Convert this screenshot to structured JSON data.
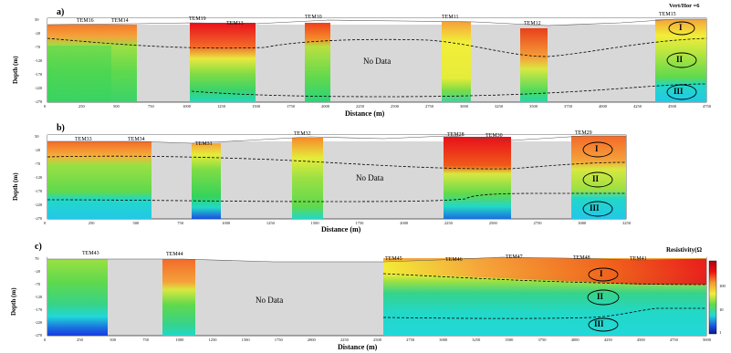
{
  "figure": {
    "vert_hor_label": "Vert/Hor =6",
    "resistivity_label": "Resistivity(Ω",
    "colorbar_ticks": [
      "100",
      "10",
      "1"
    ],
    "panels": [
      {
        "label": "a)",
        "stations": [
          "TEM16",
          "TEM14",
          "TEM19",
          "TEM13",
          "TEM10",
          "TEM11",
          "TEM12",
          "TEM15"
        ],
        "no_data": "No Data",
        "ylabel": "Depth (m)",
        "xlabel": "Distance (m)",
        "yticks": [
          "50",
          "-20",
          "-70",
          "-120",
          "-170",
          "-220",
          "-270"
        ],
        "xticks": [
          "0",
          "250",
          "500",
          "750",
          "1000",
          "1250",
          "1500",
          "1750",
          "2000",
          "2250",
          "2500",
          "2750",
          "3000",
          "3250",
          "3500",
          "3750",
          "4000",
          "4250",
          "4500",
          "4750"
        ],
        "units": [
          "I",
          "II",
          "III"
        ]
      },
      {
        "label": "b)",
        "stations": [
          "TEM33",
          "TEM34",
          "TEM31",
          "TEM32",
          "TEM28",
          "TEM30",
          "TEM29"
        ],
        "no_data": "No Data",
        "ylabel": "Depth (m)",
        "xlabel": "Distance (m)",
        "yticks": [
          "50",
          "-20",
          "-70",
          "-120",
          "-170",
          "-220",
          "-270"
        ],
        "xticks": [
          "0",
          "250",
          "500",
          "750",
          "1000",
          "1250",
          "1500",
          "1750",
          "2000",
          "2250",
          "2500",
          "2750",
          "3000",
          "3250"
        ],
        "units": [
          "I",
          "II",
          "III"
        ]
      },
      {
        "label": "c)",
        "stations": [
          "TEM43",
          "TEM44",
          "TEM45",
          "TEM46",
          "TEM47",
          "TEM48",
          "TEM41"
        ],
        "no_data": "No Data",
        "ylabel": "Depth (m)",
        "xlabel": "Distance (m)",
        "yticks": [
          "70",
          "-20",
          "-70",
          "-120",
          "-170",
          "-220",
          "-270"
        ],
        "xticks": [
          "0",
          "250",
          "500",
          "750",
          "1000",
          "1250",
          "1500",
          "1750",
          "2000",
          "2250",
          "2500",
          "2750",
          "3000",
          "3250",
          "3500",
          "3750",
          "4000",
          "4250",
          "4500",
          "4750",
          "5000"
        ],
        "units": [
          "I",
          "II",
          "III"
        ]
      }
    ]
  },
  "colors": {
    "red": "#e8101a",
    "orange": "#f5a23a",
    "yellow": "#f2ee38",
    "lime": "#9be043",
    "green": "#36d35a",
    "cyan": "#22d8d8",
    "blue": "#1a4de0",
    "gray": "#d8d8d8"
  }
}
